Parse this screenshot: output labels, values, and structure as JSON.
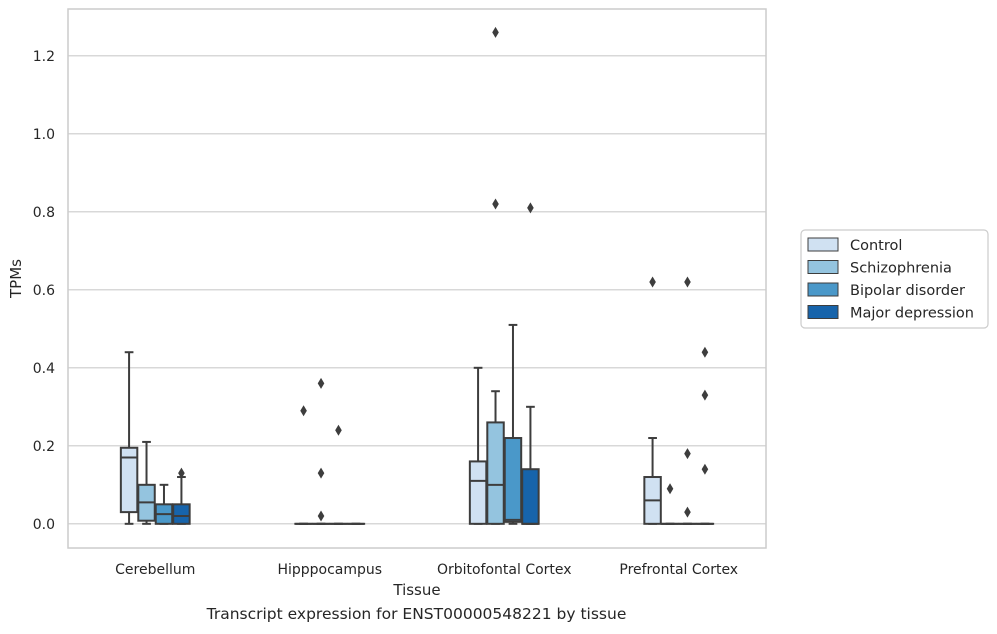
{
  "caption": "Transcript expression for ENST00000548221 by tissue",
  "chart_data": {
    "type": "box",
    "xlabel": "Tissue",
    "ylabel": "TPMs",
    "ylim": [
      -0.062,
      1.32
    ],
    "yticks": [
      0.0,
      0.2,
      0.4,
      0.6,
      0.8,
      1.0,
      1.2
    ],
    "ytick_labels": [
      "0.0",
      "0.2",
      "0.4",
      "0.6",
      "0.8",
      "1.0",
      "1.2"
    ],
    "grid": "horizontal",
    "legend_position": "right",
    "categories": [
      "Cerebellum",
      "Hipppocampus",
      "Orbitofontal Cortex",
      "Prefrontal Cortex"
    ],
    "series": [
      {
        "name": "Control",
        "color": "#d0e1f2",
        "boxes": [
          {
            "whislo": 0.0,
            "q1": 0.03,
            "med": 0.17,
            "q3": 0.195,
            "whishi": 0.44,
            "fliers": []
          },
          {
            "whislo": 0.0,
            "q1": 0.0,
            "med": 0.0,
            "q3": 0.0,
            "whishi": 0.0,
            "fliers": [
              0.29
            ]
          },
          {
            "whislo": 0.0,
            "q1": 0.0,
            "med": 0.11,
            "q3": 0.16,
            "whishi": 0.4,
            "fliers": []
          },
          {
            "whislo": 0.0,
            "q1": 0.0,
            "med": 0.06,
            "q3": 0.12,
            "whishi": 0.22,
            "fliers": [
              0.62
            ]
          }
        ]
      },
      {
        "name": "Schizophrenia",
        "color": "#94c4df",
        "boxes": [
          {
            "whislo": 0.0,
            "q1": 0.008,
            "med": 0.055,
            "q3": 0.1,
            "whishi": 0.21,
            "fliers": []
          },
          {
            "whislo": 0.0,
            "q1": 0.0,
            "med": 0.0,
            "q3": 0.0,
            "whishi": 0.0,
            "fliers": [
              0.36,
              0.13,
              0.02
            ]
          },
          {
            "whislo": 0.0,
            "q1": 0.0,
            "med": 0.1,
            "q3": 0.26,
            "whishi": 0.34,
            "fliers": [
              0.82,
              1.26
            ]
          },
          {
            "whislo": 0.0,
            "q1": 0.0,
            "med": 0.0,
            "q3": 0.0,
            "whishi": 0.0,
            "fliers": [
              0.09
            ]
          }
        ]
      },
      {
        "name": "Bipolar disorder",
        "color": "#4a98c9",
        "boxes": [
          {
            "whislo": 0.0,
            "q1": 0.0,
            "med": 0.025,
            "q3": 0.05,
            "whishi": 0.1,
            "fliers": []
          },
          {
            "whislo": 0.0,
            "q1": 0.0,
            "med": 0.0,
            "q3": 0.0,
            "whishi": 0.0,
            "fliers": [
              0.24
            ]
          },
          {
            "whislo": 0.0,
            "q1": 0.005,
            "med": 0.01,
            "q3": 0.22,
            "whishi": 0.51,
            "fliers": []
          },
          {
            "whislo": 0.0,
            "q1": 0.0,
            "med": 0.0,
            "q3": 0.0,
            "whishi": 0.0,
            "fliers": [
              0.62,
              0.18,
              0.03
            ]
          }
        ]
      },
      {
        "name": "Major depression",
        "color": "#1764ab",
        "boxes": [
          {
            "whislo": 0.0,
            "q1": 0.0,
            "med": 0.02,
            "q3": 0.05,
            "whishi": 0.12,
            "fliers": [
              0.13
            ]
          },
          {
            "whislo": 0.0,
            "q1": 0.0,
            "med": 0.0,
            "q3": 0.0,
            "whishi": 0.0,
            "fliers": []
          },
          {
            "whislo": 0.0,
            "q1": 0.0,
            "med": 0.0,
            "q3": 0.14,
            "whishi": 0.3,
            "fliers": [
              0.81
            ]
          },
          {
            "whislo": 0.0,
            "q1": 0.0,
            "med": 0.0,
            "q3": 0.0,
            "whishi": 0.0,
            "fliers": [
              0.44,
              0.33,
              0.14
            ]
          }
        ]
      }
    ]
  }
}
